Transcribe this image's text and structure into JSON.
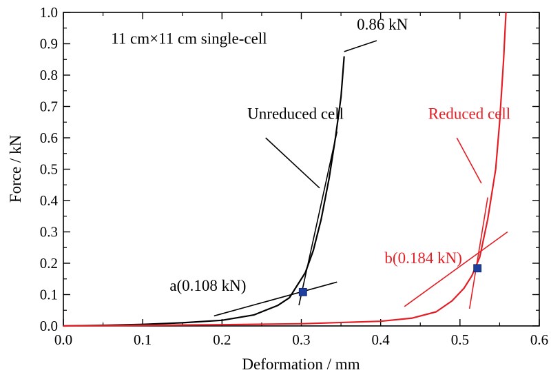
{
  "chart_data": {
    "type": "line",
    "title": "",
    "xlabel": "Deformation / mm",
    "ylabel": "Force / kN",
    "xlim": [
      0.0,
      0.6
    ],
    "ylim": [
      0.0,
      1.0
    ],
    "x_ticks": [
      "0.0",
      "0.1",
      "0.2",
      "0.3",
      "0.4",
      "0.5",
      "0.6"
    ],
    "y_ticks": [
      "0.0",
      "0.1",
      "0.2",
      "0.3",
      "0.4",
      "0.5",
      "0.6",
      "0.7",
      "0.8",
      "0.9",
      "1.0"
    ],
    "grid": false,
    "legend": "none",
    "series": [
      {
        "name": "Unreduced cell",
        "color": "#000000",
        "points": [
          [
            0.0,
            0.0
          ],
          [
            0.05,
            0.002
          ],
          [
            0.1,
            0.005
          ],
          [
            0.15,
            0.01
          ],
          [
            0.2,
            0.018
          ],
          [
            0.24,
            0.035
          ],
          [
            0.27,
            0.065
          ],
          [
            0.285,
            0.09
          ],
          [
            0.295,
            0.13
          ],
          [
            0.305,
            0.17
          ],
          [
            0.315,
            0.24
          ],
          [
            0.325,
            0.34
          ],
          [
            0.335,
            0.47
          ],
          [
            0.343,
            0.6
          ],
          [
            0.35,
            0.73
          ],
          [
            0.354,
            0.86
          ]
        ]
      },
      {
        "name": "Reduced cell",
        "color": "#e31e24",
        "points": [
          [
            0.0,
            0.0
          ],
          [
            0.1,
            0.002
          ],
          [
            0.2,
            0.004
          ],
          [
            0.3,
            0.007
          ],
          [
            0.4,
            0.015
          ],
          [
            0.44,
            0.025
          ],
          [
            0.47,
            0.045
          ],
          [
            0.49,
            0.08
          ],
          [
            0.505,
            0.12
          ],
          [
            0.515,
            0.16
          ],
          [
            0.525,
            0.22
          ],
          [
            0.535,
            0.34
          ],
          [
            0.545,
            0.5
          ],
          [
            0.55,
            0.65
          ],
          [
            0.555,
            0.85
          ],
          [
            0.558,
            1.0
          ]
        ]
      }
    ],
    "tangent_lines": [
      {
        "color": "#000000",
        "points": [
          [
            0.19,
            0.032
          ],
          [
            0.345,
            0.14
          ]
        ]
      },
      {
        "color": "#000000",
        "points": [
          [
            0.297,
            0.066
          ],
          [
            0.345,
            0.62
          ]
        ]
      },
      {
        "color": "#e31e24",
        "points": [
          [
            0.43,
            0.062
          ],
          [
            0.56,
            0.3
          ]
        ]
      },
      {
        "color": "#e31e24",
        "points": [
          [
            0.512,
            0.055
          ],
          [
            0.535,
            0.41
          ]
        ]
      }
    ],
    "markers": [
      {
        "x": 0.302,
        "y": 0.108,
        "color": "#1f3f9e"
      },
      {
        "x": 0.522,
        "y": 0.184,
        "color": "#1f3f9e"
      }
    ],
    "annotations": [
      {
        "text": "11 cm×11 cm single-cell",
        "x": 0.06,
        "y": 0.9,
        "color": "#000000"
      },
      {
        "text": "0.86 kN",
        "x": 0.37,
        "y": 0.945,
        "color": "#000000"
      },
      {
        "text": "Unreduced cell",
        "x": 0.232,
        "y": 0.66,
        "color": "#000000"
      },
      {
        "text": "Reduced cell",
        "x": 0.46,
        "y": 0.66,
        "color": "#e31e24"
      },
      {
        "text": "a(0.108 kN)",
        "x": 0.134,
        "y": 0.112,
        "color": "#000000"
      },
      {
        "text": "b(0.184 kN)",
        "x": 0.405,
        "y": 0.2,
        "color": "#e31e24"
      }
    ],
    "callout_lines": [
      {
        "color": "#000000",
        "points": [
          [
            0.354,
            0.875
          ],
          [
            0.395,
            0.91
          ]
        ]
      },
      {
        "color": "#000000",
        "points": [
          [
            0.255,
            0.6
          ],
          [
            0.323,
            0.44
          ]
        ]
      },
      {
        "color": "#e31e24",
        "points": [
          [
            0.496,
            0.6
          ],
          [
            0.527,
            0.455
          ]
        ]
      }
    ]
  }
}
